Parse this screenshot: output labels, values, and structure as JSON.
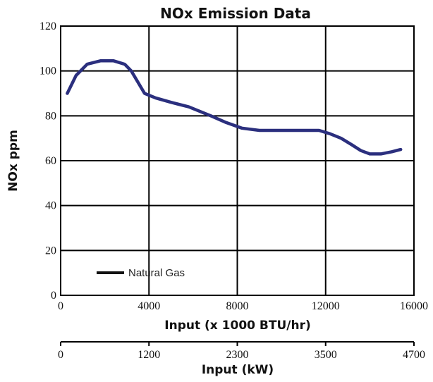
{
  "chart_data": {
    "type": "line",
    "title": "NOx Emission Data",
    "ylabel": "NOx ppm",
    "xlabel": "Input (x 1000 BTU/hr)",
    "xlim": [
      0,
      16000
    ],
    "ylim": [
      0,
      120
    ],
    "x_ticks": [
      0,
      4000,
      8000,
      12000,
      16000
    ],
    "y_ticks": [
      0,
      20,
      40,
      60,
      80,
      100,
      120
    ],
    "grid": true,
    "legend_position": "bottom-left",
    "series": [
      {
        "name": "Natural Gas",
        "color": "#2b2f7e",
        "legend_color": "#111111",
        "x": [
          300,
          700,
          1200,
          1800,
          2400,
          2900,
          3200,
          3500,
          3800,
          4300,
          5000,
          5800,
          6800,
          7500,
          8200,
          9000,
          10000,
          11000,
          11700,
          12200,
          12700,
          13200,
          13600,
          14000,
          14500,
          15000,
          15400
        ],
        "y": [
          90,
          98,
          103,
          104.5,
          104.5,
          103,
          100,
          95,
          90,
          88,
          86,
          84,
          80,
          77,
          74.5,
          73.5,
          73.5,
          73.5,
          73.5,
          72,
          70,
          67,
          64.5,
          63,
          63,
          64,
          65
        ]
      }
    ],
    "secondary_x_axis": {
      "label": "Input (kW)",
      "tick_labels": [
        "0",
        "1200",
        "2300",
        "3500",
        "4700"
      ]
    }
  }
}
